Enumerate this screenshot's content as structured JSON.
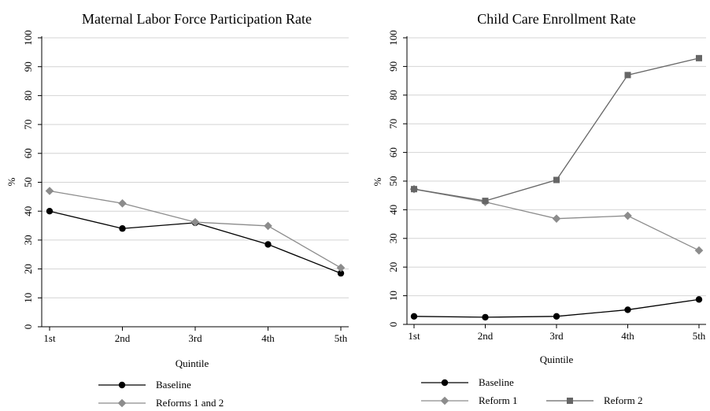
{
  "chart_data": [
    {
      "type": "line",
      "title": "Maternal Labor Force Participation Rate",
      "xlabel": "Quintile",
      "ylabel": "%",
      "categories": [
        "1st",
        "2nd",
        "3rd",
        "4th",
        "5th"
      ],
      "ylim": [
        0,
        100
      ],
      "yticks": [
        "0",
        "10",
        "20",
        "30",
        "40",
        "50",
        "60",
        "70",
        "80",
        "90",
        "100"
      ],
      "grid": true,
      "legend_position": "bottom",
      "series": [
        {
          "name": "Baseline",
          "values": [
            40,
            34,
            36,
            28.5,
            18.5
          ],
          "color": "#000000",
          "marker": "circle"
        },
        {
          "name": "Reforms 1 and 2",
          "values": [
            47,
            42.7,
            36.2,
            34.9,
            20.4
          ],
          "color": "#8c8c8c",
          "marker": "diamond"
        }
      ]
    },
    {
      "type": "line",
      "title": "Child Care Enrollment Rate",
      "xlabel": "Quintile",
      "ylabel": "%",
      "categories": [
        "1st",
        "2nd",
        "3rd",
        "4th",
        "5th"
      ],
      "ylim": [
        0,
        100
      ],
      "yticks": [
        "0",
        "10",
        "20",
        "30",
        "40",
        "50",
        "60",
        "70",
        "80",
        "90",
        "100"
      ],
      "grid": true,
      "legend_position": "bottom",
      "series": [
        {
          "name": "Baseline",
          "values": [
            2.8,
            2.5,
            2.8,
            5.1,
            8.7
          ],
          "color": "#000000",
          "marker": "circle"
        },
        {
          "name": "Reform 1",
          "values": [
            47.2,
            42.7,
            36.9,
            37.9,
            25.8
          ],
          "color": "#8c8c8c",
          "marker": "diamond"
        },
        {
          "name": "Reform 2",
          "values": [
            47.2,
            43.1,
            50.4,
            87,
            92.9
          ],
          "color": "#666666",
          "marker": "square"
        }
      ]
    }
  ]
}
